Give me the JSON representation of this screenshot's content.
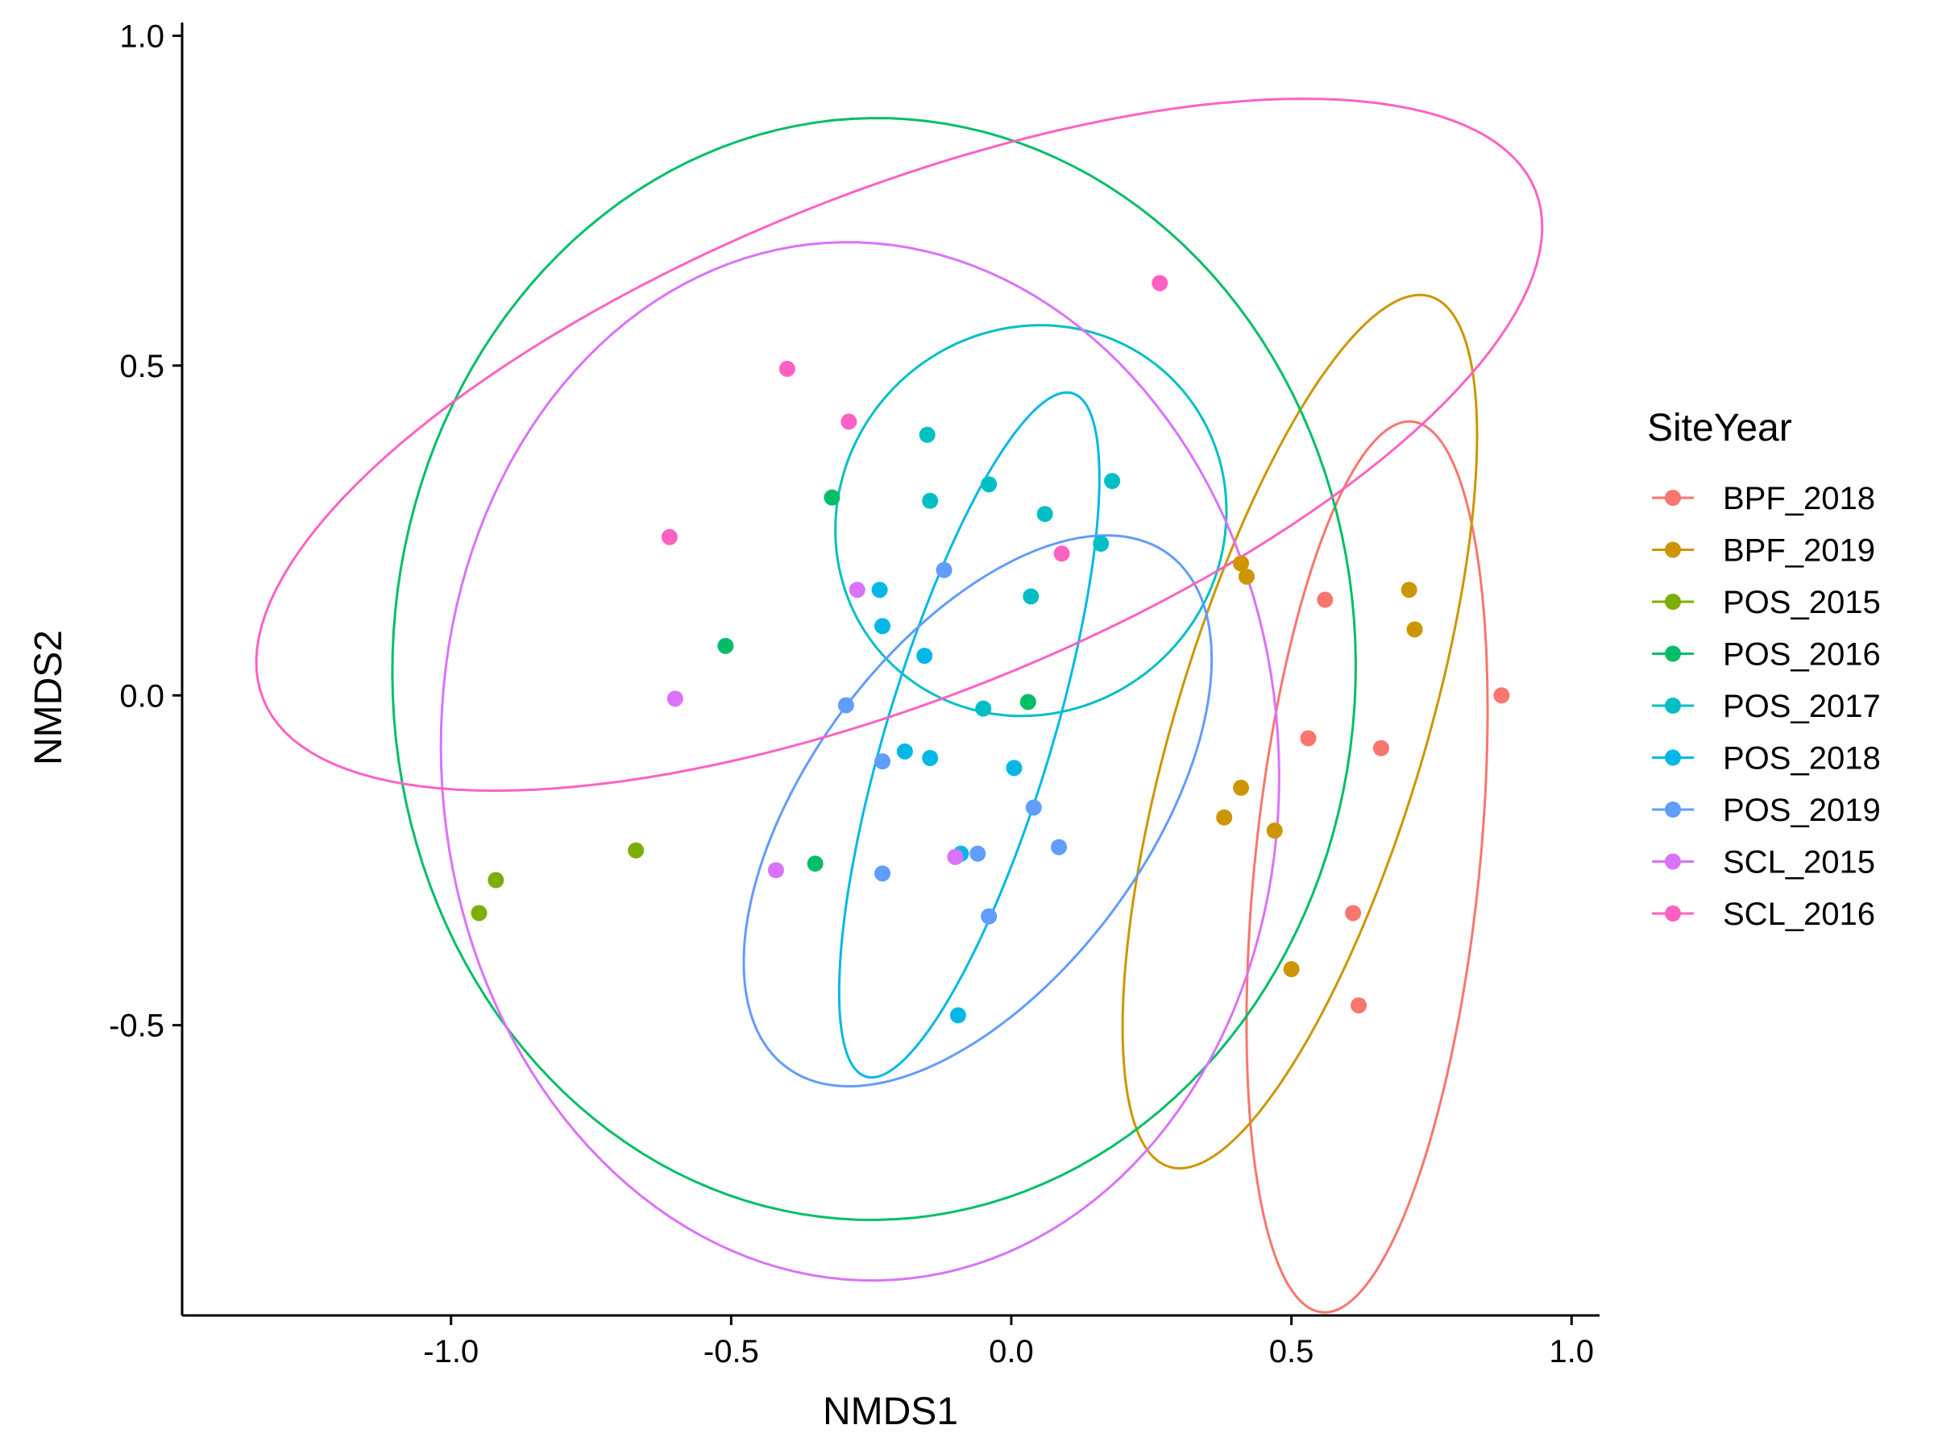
{
  "chart_data": {
    "type": "scatter",
    "xlabel": "NMDS1",
    "ylabel": "NMDS2",
    "xlim": [
      -1.48,
      1.05
    ],
    "ylim": [
      -0.94,
      1.02
    ],
    "xticks": [
      -1.0,
      -0.5,
      0.0,
      0.5,
      1.0
    ],
    "xtick_labels": [
      "-1.0",
      "-0.5",
      "0.0",
      "0.5",
      "1.0"
    ],
    "yticks": [
      -0.5,
      0.0,
      0.5,
      1.0
    ],
    "ytick_labels": [
      "-0.5",
      "0.0",
      "0.5",
      "1.0"
    ],
    "grid": false,
    "legend": {
      "title": "SiteYear",
      "position": "right"
    },
    "series": [
      {
        "name": "BPF_2018",
        "color": "#F8766D",
        "points": [
          [
            0.56,
            0.145
          ],
          [
            0.875,
            0.0
          ],
          [
            0.53,
            -0.065
          ],
          [
            0.66,
            -0.08
          ],
          [
            0.61,
            -0.33
          ],
          [
            0.62,
            -0.47
          ]
        ],
        "ellipse": {
          "cx": 0.635,
          "cy": -0.26,
          "rx": 0.68,
          "ry": 0.2,
          "angle": 83
        }
      },
      {
        "name": "BPF_2019",
        "color": "#CD9600",
        "points": [
          [
            0.41,
            0.2
          ],
          [
            0.42,
            0.18
          ],
          [
            0.71,
            0.16
          ],
          [
            0.72,
            0.1
          ],
          [
            0.41,
            -0.14
          ],
          [
            0.38,
            -0.185
          ],
          [
            0.47,
            -0.205
          ],
          [
            0.5,
            -0.415
          ]
        ],
        "ellipse": {
          "cx": 0.515,
          "cy": -0.055,
          "rx": 0.7,
          "ry": 0.22,
          "angle": 70
        }
      },
      {
        "name": "POS_2015",
        "color": "#7CAE00",
        "points": [
          [
            -0.67,
            -0.235
          ],
          [
            -0.92,
            -0.28
          ],
          [
            -0.95,
            -0.33
          ]
        ],
        "ellipse": null
      },
      {
        "name": "POS_2016",
        "color": "#00BE67",
        "points": [
          [
            -0.32,
            0.3
          ],
          [
            -0.51,
            0.075
          ],
          [
            0.03,
            -0.01
          ],
          [
            -0.35,
            -0.255
          ]
        ],
        "ellipse": {
          "cx": -0.245,
          "cy": 0.04,
          "rx": 0.86,
          "ry": 0.835,
          "angle": 5
        }
      },
      {
        "name": "POS_2017",
        "color": "#00BFC4",
        "points": [
          [
            -0.15,
            0.395
          ],
          [
            -0.04,
            0.32
          ],
          [
            0.18,
            0.325
          ],
          [
            -0.145,
            0.295
          ],
          [
            0.06,
            0.275
          ],
          [
            0.16,
            0.23
          ],
          [
            0.035,
            0.15
          ],
          [
            -0.05,
            -0.02
          ]
        ],
        "ellipse": {
          "cx": 0.035,
          "cy": 0.265,
          "rx": 0.35,
          "ry": 0.295,
          "angle": 8
        }
      },
      {
        "name": "POS_2018",
        "color": "#00B8E7",
        "points": [
          [
            -0.235,
            0.16
          ],
          [
            -0.23,
            0.105
          ],
          [
            -0.155,
            0.06
          ],
          [
            -0.19,
            -0.085
          ],
          [
            -0.145,
            -0.095
          ],
          [
            0.005,
            -0.11
          ],
          [
            -0.09,
            -0.24
          ],
          [
            -0.095,
            -0.485
          ]
        ],
        "ellipse": {
          "cx": -0.075,
          "cy": -0.06,
          "rx": 0.55,
          "ry": 0.145,
          "angle": 70
        }
      },
      {
        "name": "POS_2019",
        "color": "#619CFF",
        "points": [
          [
            -0.12,
            0.19
          ],
          [
            -0.295,
            -0.015
          ],
          [
            -0.23,
            -0.1
          ],
          [
            0.04,
            -0.17
          ],
          [
            0.085,
            -0.23
          ],
          [
            -0.06,
            -0.24
          ],
          [
            -0.23,
            -0.27
          ],
          [
            -0.04,
            -0.335
          ]
        ],
        "ellipse": {
          "cx": -0.06,
          "cy": -0.175,
          "rx": 0.52,
          "ry": 0.28,
          "angle": 45
        }
      },
      {
        "name": "SCL_2015",
        "color": "#DB72FB",
        "points": [
          [
            -0.275,
            0.16
          ],
          [
            -0.6,
            -0.005
          ],
          [
            -0.42,
            -0.265
          ],
          [
            -0.1,
            -0.245
          ]
        ],
        "ellipse": {
          "cx": -0.27,
          "cy": -0.1,
          "rx": 0.745,
          "ry": 0.79,
          "angle": 15
        }
      },
      {
        "name": "SCL_2016",
        "color": "#FF61C3",
        "points": [
          [
            0.265,
            0.625
          ],
          [
            -0.4,
            0.495
          ],
          [
            -0.29,
            0.415
          ],
          [
            -0.61,
            0.24
          ],
          [
            0.09,
            0.215
          ]
        ],
        "ellipse": {
          "cx": -0.2,
          "cy": 0.38,
          "rx": 1.2,
          "ry": 0.39,
          "angle": 18
        }
      }
    ]
  }
}
